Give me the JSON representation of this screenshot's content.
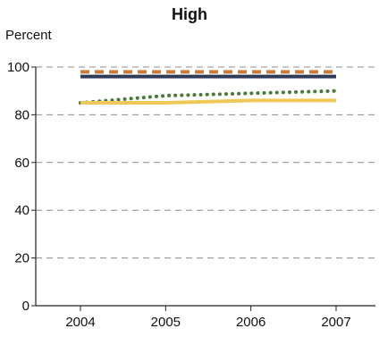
{
  "chart_data": {
    "type": "line",
    "title": "High",
    "xlabel": "",
    "ylabel": "Percent",
    "x": [
      "2004",
      "2005",
      "2006",
      "2007"
    ],
    "ylim": [
      0,
      100
    ],
    "yticks": [
      0,
      20,
      40,
      60,
      80,
      100
    ],
    "grid": "horizontal dashed",
    "series": [
      {
        "color": "#c97d3a",
        "style": "dashed",
        "values": [
          98,
          98,
          98,
          98
        ]
      },
      {
        "color": "#2e3b58",
        "style": "solid",
        "values": [
          96,
          96,
          96,
          96
        ]
      },
      {
        "color": "#4a7a3a",
        "style": "dotted",
        "values": [
          85,
          88,
          89,
          90
        ]
      },
      {
        "color": "#f0c85a",
        "style": "solid",
        "values": [
          85,
          85,
          86,
          86
        ]
      }
    ]
  }
}
